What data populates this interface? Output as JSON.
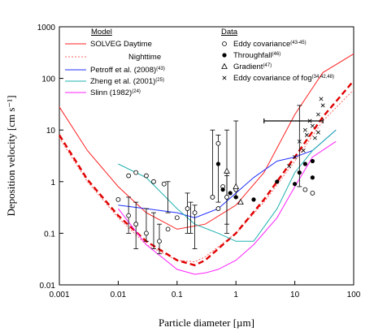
{
  "chart_data": {
    "type": "scatter",
    "xlabel": "Particle diameter [µm]",
    "ylabel": "Deposition velocity [cm s⁻¹]",
    "x_scale": "log",
    "y_scale": "log",
    "xlim": [
      0.001,
      100
    ],
    "ylim": [
      0.01,
      1000
    ],
    "x_ticks": [
      {
        "value": 0.001,
        "label": "0.001"
      },
      {
        "value": 0.01,
        "label": "0.01"
      },
      {
        "value": 0.1,
        "label": "0.1"
      },
      {
        "value": 1,
        "label": "1"
      },
      {
        "value": 10,
        "label": "10"
      },
      {
        "value": 100,
        "label": "100"
      }
    ],
    "y_ticks": [
      {
        "value": 0.01,
        "label": "0.01"
      },
      {
        "value": 0.1,
        "label": "0.1"
      },
      {
        "value": 1,
        "label": "1"
      },
      {
        "value": 10,
        "label": "10"
      },
      {
        "value": 100,
        "label": "100"
      },
      {
        "value": 1000,
        "label": "1000"
      }
    ],
    "legend": {
      "model_header": "Model",
      "data_header": "Data",
      "solveg_label": "SOLVEG Daytime",
      "nighttime_label": "Nighttime",
      "model_entries": [
        {
          "label": "Petroff et al. (2008)",
          "ref": "43"
        },
        {
          "label": "Zheng et al. (2001)",
          "ref": "25"
        },
        {
          "label": "Slinn (1982)",
          "ref": "24"
        }
      ],
      "data_entries": [
        {
          "label": "Eddy covariance",
          "ref": "43-45",
          "marker": "open-circle"
        },
        {
          "label": "Throughfall",
          "ref": "46",
          "marker": "filled-circle"
        },
        {
          "label": "Gradient",
          "ref": "47",
          "marker": "open-triangle"
        },
        {
          "label": "Eddy covariance of fog",
          "ref": "34,42,48",
          "marker": "cross"
        }
      ]
    },
    "series": [
      {
        "name": "SOLVEG Daytime",
        "line": "solid",
        "color": "#ff2020",
        "x": [
          0.001,
          0.003,
          0.01,
          0.03,
          0.1,
          0.3,
          1,
          3,
          10,
          30,
          100
        ],
        "y": [
          28,
          4.0,
          0.8,
          0.25,
          0.12,
          0.15,
          0.35,
          1.5,
          20,
          130,
          300
        ]
      },
      {
        "name": "Nighttime",
        "line": "dotted",
        "color": "#ff6060",
        "x": [
          0.001,
          0.003,
          0.01,
          0.03,
          0.1,
          0.2,
          0.3,
          1,
          3,
          10,
          30,
          100
        ],
        "y": [
          7,
          1.0,
          0.2,
          0.06,
          0.03,
          0.028,
          0.035,
          0.1,
          0.4,
          2.5,
          15,
          60
        ]
      },
      {
        "name": "SOLVEG Daytime (bold dashed)",
        "line": "dashed",
        "color": "#e00000",
        "x": [
          0.001,
          0.003,
          0.01,
          0.03,
          0.1,
          0.2,
          0.3,
          1,
          3,
          10,
          30,
          100
        ],
        "y": [
          8,
          1.1,
          0.22,
          0.07,
          0.03,
          0.024,
          0.03,
          0.1,
          0.45,
          3,
          18,
          90
        ]
      },
      {
        "name": "Petroff et al. (2008)",
        "line": "solid",
        "color": "#2030ff",
        "x": [
          0.01,
          0.03,
          0.1,
          0.2,
          0.5,
          1,
          2,
          5,
          10,
          20,
          50
        ],
        "y": [
          0.35,
          0.3,
          0.25,
          0.2,
          0.3,
          0.6,
          1.2,
          2.5,
          3,
          4,
          10
        ]
      },
      {
        "name": "Zheng et al. (2001)",
        "line": "solid",
        "color": "#20b0b0",
        "x": [
          0.01,
          0.03,
          0.1,
          0.2,
          0.5,
          1,
          2,
          5,
          10,
          20,
          50
        ],
        "y": [
          2.2,
          1.2,
          0.3,
          0.15,
          0.1,
          0.07,
          0.07,
          0.3,
          1.5,
          4,
          10
        ]
      },
      {
        "name": "Slinn (1982)",
        "line": "solid",
        "color": "#ff20ff",
        "x": [
          0.01,
          0.03,
          0.1,
          0.2,
          0.3,
          0.5,
          1,
          2,
          5,
          10,
          20,
          50
        ],
        "y": [
          0.3,
          0.06,
          0.02,
          0.016,
          0.017,
          0.02,
          0.03,
          0.06,
          0.2,
          0.8,
          3,
          6
        ]
      }
    ],
    "data_points": {
      "eddy_covariance": {
        "marker": "open-circle",
        "x": [
          0.01,
          0.015,
          0.02,
          0.03,
          0.05,
          0.07,
          0.1,
          0.015,
          0.02,
          0.03,
          0.04,
          0.06,
          0.15,
          0.2,
          0.4,
          0.5,
          0.6,
          0.5,
          0.7,
          1.0,
          15,
          20
        ],
        "y": [
          0.45,
          0.22,
          0.15,
          0.1,
          0.07,
          0.12,
          0.2,
          1.3,
          1.5,
          1.3,
          1.0,
          0.9,
          0.3,
          0.25,
          0.5,
          5.5,
          0.8,
          0.3,
          0.5,
          0.7,
          0.7,
          0.6
        ]
      },
      "throughfall": {
        "marker": "filled-circle",
        "x": [
          0.5,
          0.8,
          1.0,
          2,
          5,
          10,
          12,
          15,
          20,
          20,
          0.6
        ],
        "y": [
          2.2,
          0.6,
          0.5,
          0.45,
          1.0,
          0.9,
          1.5,
          2.2,
          2.5,
          1.2,
          0.7
        ]
      },
      "gradient": {
        "marker": "open-triangle",
        "x": [
          1.0,
          1.2,
          0.7
        ],
        "y": [
          0.8,
          0.4,
          1.6
        ]
      },
      "fog": {
        "marker": "cross",
        "x": [
          10,
          12,
          15,
          18,
          20,
          25,
          30,
          8,
          14,
          22,
          28,
          16,
          25
        ],
        "y": [
          3,
          6,
          10,
          15,
          12,
          20,
          30,
          2,
          4,
          7,
          40,
          8,
          9
        ]
      },
      "error_bars": [
        {
          "x": 0.015,
          "y": 0.25,
          "ylo": 0.1,
          "yhi": 0.5
        },
        {
          "x": 0.02,
          "y": 0.2,
          "ylo": 0.05,
          "yhi": 0.4
        },
        {
          "x": 0.03,
          "y": 0.15,
          "ylo": 0.07,
          "yhi": 0.3
        },
        {
          "x": 0.04,
          "y": 0.12,
          "ylo": 0.05,
          "yhi": 0.25
        },
        {
          "x": 0.05,
          "y": 0.07,
          "ylo": 0.04,
          "yhi": 0.15
        },
        {
          "x": 0.07,
          "y": 0.5,
          "ylo": 0.25,
          "yhi": 1.0
        },
        {
          "x": 0.15,
          "y": 0.25,
          "ylo": 0.1,
          "yhi": 0.6
        },
        {
          "x": 0.17,
          "y": 0.2,
          "ylo": 0.1,
          "yhi": 0.4
        },
        {
          "x": 0.2,
          "y": 0.15,
          "ylo": 0.05,
          "yhi": 0.35
        },
        {
          "x": 0.4,
          "y": 4.0,
          "ylo": 0.5,
          "yhi": 10
        },
        {
          "x": 0.5,
          "y": 3.0,
          "ylo": 0.4,
          "yhi": 8
        },
        {
          "x": 0.7,
          "y": 1.5,
          "ylo": 0.1,
          "yhi": 10
        },
        {
          "x": 1.0,
          "y": 3.0,
          "ylo": 0.5,
          "yhi": 15
        },
        {
          "x": 0.7,
          "y": 0.6,
          "ylo": 0.15,
          "yhi": 1.3
        },
        {
          "x": 12,
          "y": 15,
          "ylo": 0.8,
          "yhi": 30,
          "xlo": 3,
          "xhi": 30
        }
      ]
    }
  }
}
